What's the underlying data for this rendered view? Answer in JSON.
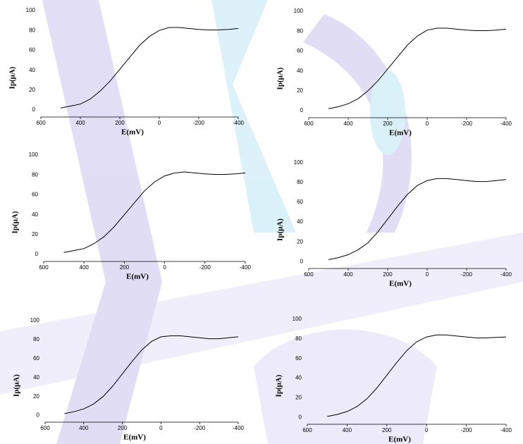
{
  "chart_data": [
    {
      "type": "line",
      "xlabel": "E(mV)",
      "ylabel": "Ip(μA)",
      "xlim": [
        600,
        -400
      ],
      "xticks": [
        600,
        400,
        200,
        0,
        -200,
        -400
      ],
      "ylim": [
        -7,
        100
      ],
      "yticks": [
        0,
        20,
        40,
        60,
        80,
        100
      ],
      "color": "#000000",
      "x": [
        500,
        450,
        400,
        350,
        300,
        250,
        200,
        150,
        100,
        50,
        0,
        -50,
        -100,
        -150,
        -200,
        -250,
        -300,
        -350,
        -400
      ],
      "values": [
        2,
        4,
        6,
        11,
        19,
        29,
        41,
        53,
        65,
        74,
        80,
        83,
        83,
        82,
        81,
        80.5,
        80.5,
        81,
        82
      ]
    },
    {
      "type": "line",
      "xlabel": "E(mV)",
      "ylabel": "Ip(μA)",
      "xlim": [
        600,
        -400
      ],
      "xticks": [
        600,
        400,
        200,
        0,
        -200,
        -400
      ],
      "ylim": [
        -7,
        100
      ],
      "yticks": [
        0,
        20,
        40,
        60,
        80,
        100
      ],
      "color": "#000000",
      "x": [
        500,
        450,
        400,
        350,
        300,
        250,
        200,
        150,
        100,
        50,
        0,
        -50,
        -100,
        -150,
        -200,
        -250,
        -300,
        -350,
        -400
      ],
      "values": [
        2,
        4,
        7,
        12,
        20,
        30,
        42,
        54,
        66,
        75,
        81,
        83,
        83,
        82,
        81,
        80.5,
        80.5,
        81,
        82
      ]
    },
    {
      "type": "line",
      "xlabel": "E(mV)",
      "ylabel": "Ip(μA)",
      "xlim": [
        600,
        -400
      ],
      "xticks": [
        600,
        400,
        200,
        0,
        -200,
        -400
      ],
      "ylim": [
        -7,
        100
      ],
      "yticks": [
        0,
        20,
        40,
        60,
        80,
        100
      ],
      "color": "#000000",
      "x": [
        500,
        450,
        400,
        350,
        300,
        250,
        200,
        150,
        100,
        50,
        0,
        -50,
        -100,
        -150,
        -200,
        -250,
        -300,
        -350,
        -400
      ],
      "values": [
        2,
        4,
        6,
        11,
        18,
        28,
        40,
        52,
        64,
        73,
        79,
        82,
        83,
        82,
        81,
        80.5,
        80.5,
        81,
        82
      ]
    },
    {
      "type": "line",
      "xlabel": "E(mV)",
      "ylabel": "Ip(μA)",
      "xlim": [
        600,
        -400
      ],
      "xticks": [
        600,
        400,
        200,
        0,
        -200,
        -400
      ],
      "ylim": [
        -7,
        100
      ],
      "yticks": [
        0,
        20,
        40,
        60,
        80,
        100
      ],
      "color": "#000000",
      "x": [
        500,
        450,
        400,
        350,
        300,
        250,
        200,
        150,
        100,
        50,
        0,
        -50,
        -100,
        -150,
        -200,
        -250,
        -300,
        -350,
        -400
      ],
      "values": [
        2,
        4,
        7,
        12,
        19,
        30,
        43,
        56,
        68,
        77,
        82,
        84,
        84,
        83,
        82,
        81,
        81,
        82,
        83
      ]
    },
    {
      "type": "line",
      "xlabel": "E(mV)",
      "ylabel": "Ip(μA)",
      "xlim": [
        600,
        -400
      ],
      "xticks": [
        600,
        400,
        200,
        0,
        -200,
        -400
      ],
      "ylim": [
        -7,
        100
      ],
      "yticks": [
        0,
        20,
        40,
        60,
        80,
        100
      ],
      "color": "#000000",
      "x": [
        500,
        450,
        400,
        350,
        300,
        250,
        200,
        150,
        100,
        50,
        0,
        -50,
        -100,
        -150,
        -200,
        -250,
        -300,
        -350,
        -400
      ],
      "values": [
        2,
        4,
        7,
        12,
        20,
        31,
        44,
        57,
        69,
        78,
        83,
        84,
        84,
        83,
        82,
        81,
        81,
        82,
        83
      ]
    },
    {
      "type": "line",
      "xlabel": "E(mV)",
      "ylabel": "Ip(μA)",
      "xlim": [
        600,
        -400
      ],
      "xticks": [
        600,
        400,
        200,
        0,
        -200,
        -400
      ],
      "ylim": [
        -7,
        100
      ],
      "yticks": [
        0,
        20,
        40,
        60,
        80,
        100
      ],
      "color": "#000000",
      "x": [
        500,
        450,
        400,
        350,
        300,
        250,
        200,
        150,
        100,
        50,
        0,
        -50,
        -100,
        -150,
        -200,
        -250,
        -300,
        -350,
        -400
      ],
      "values": [
        1,
        3,
        6,
        11,
        19,
        30,
        43,
        56,
        68,
        77,
        82,
        84,
        84,
        83,
        82,
        81,
        81,
        81.5,
        82
      ]
    }
  ]
}
